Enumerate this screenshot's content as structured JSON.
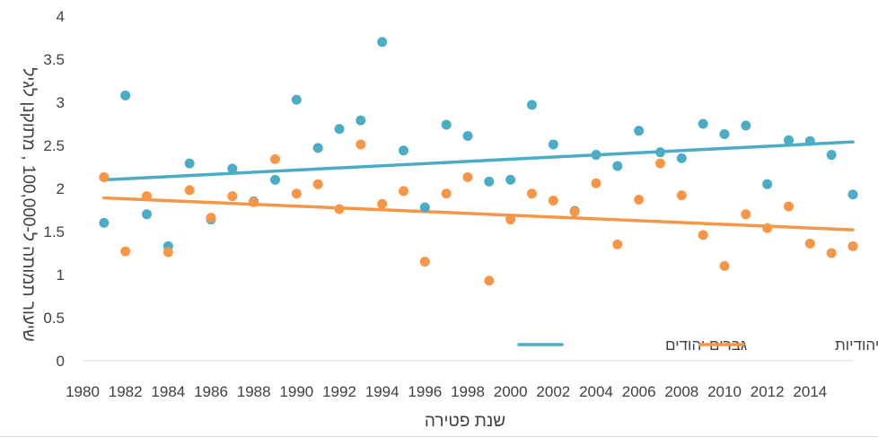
{
  "chart_data": {
    "type": "scatter",
    "xlabel": "שנת פטירה",
    "ylabel": "שיעור תמותה ל-100,000 , מתוקנן לגיל",
    "xlim": [
      1980,
      2016
    ],
    "ylim": [
      0,
      4
    ],
    "x_ticks": [
      "1980",
      "1982",
      "1984",
      "1986",
      "1988",
      "1990",
      "1992",
      "1994",
      "1996",
      "1998",
      "2000",
      "2002",
      "2004",
      "2006",
      "2008",
      "2010",
      "2012",
      "2014"
    ],
    "y_ticks": [
      "0",
      "0.5",
      "1",
      "1.5",
      "2",
      "2.5",
      "3",
      "3.5",
      "4"
    ],
    "grid": false,
    "legend_position": "bottom-right",
    "years": [
      1981,
      1982,
      1983,
      1984,
      1985,
      1986,
      1987,
      1988,
      1989,
      1990,
      1991,
      1992,
      1993,
      1994,
      1995,
      1996,
      1997,
      1998,
      1999,
      2000,
      2001,
      2002,
      2003,
      2004,
      2005,
      2006,
      2007,
      2008,
      2009,
      2010,
      2011,
      2012,
      2013,
      2014,
      2015,
      2016
    ],
    "series": [
      {
        "name": "גברים יהודים",
        "color": "#4bacc6",
        "values": [
          1.6,
          3.08,
          1.7,
          1.33,
          2.29,
          1.64,
          2.23,
          1.85,
          2.1,
          3.03,
          2.47,
          2.69,
          2.79,
          3.7,
          2.44,
          1.78,
          2.74,
          2.61,
          2.08,
          2.1,
          2.97,
          2.51,
          1.74,
          2.39,
          2.26,
          2.67,
          2.42,
          2.35,
          2.75,
          2.63,
          2.73,
          2.05,
          2.56,
          2.55,
          2.39,
          1.93
        ],
        "trend": [
          2.1,
          2.54
        ]
      },
      {
        "name": "נשים יהודיות",
        "color": "#f79646",
        "values": [
          2.13,
          1.27,
          1.91,
          1.26,
          1.98,
          1.66,
          1.91,
          1.84,
          2.34,
          1.94,
          2.05,
          1.76,
          2.51,
          1.82,
          1.97,
          1.15,
          1.94,
          2.13,
          0.93,
          1.64,
          1.94,
          1.86,
          1.73,
          2.06,
          1.35,
          1.87,
          2.29,
          1.92,
          1.46,
          1.1,
          1.7,
          1.54,
          1.79,
          1.36,
          1.25,
          1.33
        ],
        "trend": [
          1.89,
          1.52
        ]
      }
    ]
  }
}
